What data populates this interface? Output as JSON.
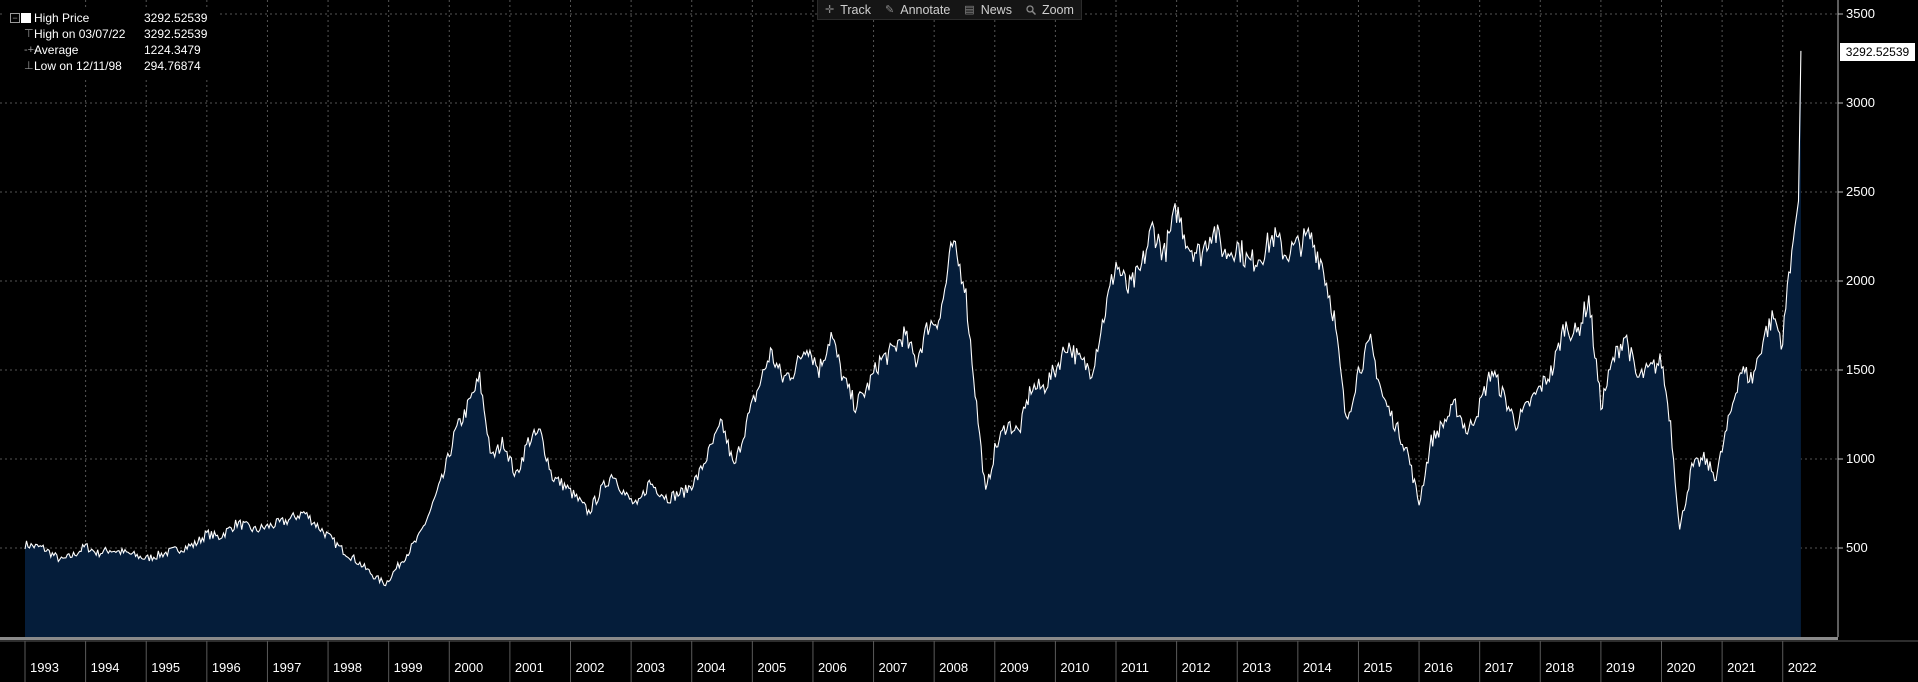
{
  "toolbar": {
    "track": "Track",
    "annotate": "Annotate",
    "news": "News",
    "zoom": "Zoom"
  },
  "legend": {
    "series_label": "High Price",
    "series_value": "3292.52539",
    "high_label": "High on 03/07/22",
    "high_value": "3292.52539",
    "average_label": "Average",
    "average_value": "1224.3479",
    "low_label": "Low on 12/11/98",
    "low_value": "294.76874"
  },
  "last_value_label": "3292.52539",
  "colors": {
    "background": "#000000",
    "line": "#ffffff",
    "fill": "#051d3a",
    "grid": "#555555"
  },
  "chart_data": {
    "type": "area",
    "title": "",
    "xlabel": "",
    "ylabel": "",
    "series_name": "High Price",
    "ylim": [
      0,
      3500
    ],
    "yticks": [
      500,
      1000,
      1500,
      2000,
      2500,
      3000,
      3500
    ],
    "xlim": [
      1993.0,
      2022.45
    ],
    "xticks": [
      "1993",
      "1994",
      "1995",
      "1996",
      "1997",
      "1998",
      "1999",
      "2000",
      "2001",
      "2002",
      "2003",
      "2004",
      "2005",
      "2006",
      "2007",
      "2008",
      "2009",
      "2010",
      "2011",
      "2012",
      "2013",
      "2014",
      "2015",
      "2016",
      "2017",
      "2018",
      "2019",
      "2020",
      "2021",
      "2022"
    ],
    "grid": true,
    "legend_position": "top-left",
    "x": [
      1993.0,
      1993.3,
      1993.6,
      1993.8,
      1994.0,
      1994.2,
      1994.4,
      1994.7,
      1995.0,
      1995.3,
      1995.6,
      1995.8,
      1996.0,
      1996.2,
      1996.5,
      1996.8,
      1997.0,
      1997.3,
      1997.6,
      1997.9,
      1998.2,
      1998.5,
      1998.8,
      1998.95,
      1999.2,
      1999.5,
      1999.7,
      1999.9,
      2000.1,
      2000.25,
      2000.5,
      2000.7,
      2000.9,
      2001.1,
      2001.3,
      2001.5,
      2001.7,
      2001.9,
      2002.1,
      2002.3,
      2002.5,
      2002.7,
      2002.9,
      2003.1,
      2003.3,
      2003.6,
      2003.9,
      2004.1,
      2004.3,
      2004.5,
      2004.7,
      2004.9,
      2005.1,
      2005.3,
      2005.5,
      2005.7,
      2005.9,
      2006.1,
      2006.3,
      2006.5,
      2006.7,
      2006.9,
      2007.1,
      2007.3,
      2007.5,
      2007.7,
      2007.9,
      2008.1,
      2008.3,
      2008.5,
      2008.7,
      2008.85,
      2009.0,
      2009.2,
      2009.4,
      2009.6,
      2009.8,
      2010.0,
      2010.2,
      2010.4,
      2010.6,
      2010.8,
      2011.0,
      2011.2,
      2011.4,
      2011.6,
      2011.8,
      2012.0,
      2012.2,
      2012.4,
      2012.6,
      2012.8,
      2013.0,
      2013.2,
      2013.4,
      2013.6,
      2013.8,
      2014.0,
      2014.2,
      2014.4,
      2014.6,
      2014.8,
      2015.0,
      2015.2,
      2015.4,
      2015.6,
      2015.8,
      2016.0,
      2016.2,
      2016.4,
      2016.6,
      2016.8,
      2017.0,
      2017.2,
      2017.4,
      2017.6,
      2017.8,
      2018.0,
      2018.2,
      2018.4,
      2018.6,
      2018.8,
      2019.0,
      2019.2,
      2019.4,
      2019.6,
      2019.8,
      2020.0,
      2020.15,
      2020.3,
      2020.5,
      2020.7,
      2020.9,
      2021.1,
      2021.3,
      2021.5,
      2021.7,
      2021.85,
      2022.0,
      2022.1,
      2022.2,
      2022.26,
      2022.3
    ],
    "y": [
      520,
      500,
      430,
      460,
      510,
      470,
      490,
      470,
      440,
      470,
      500,
      520,
      580,
      560,
      640,
      600,
      620,
      650,
      700,
      600,
      500,
      420,
      330,
      300,
      420,
      560,
      720,
      900,
      1150,
      1250,
      1450,
      1000,
      1100,
      900,
      1100,
      1150,
      900,
      850,
      780,
      700,
      820,
      920,
      800,
      730,
      870,
      780,
      820,
      900,
      1050,
      1200,
      950,
      1200,
      1400,
      1600,
      1450,
      1500,
      1650,
      1500,
      1700,
      1450,
      1300,
      1400,
      1550,
      1600,
      1700,
      1550,
      1750,
      1800,
      2200,
      2000,
      1300,
      800,
      1050,
      1200,
      1150,
      1400,
      1400,
      1500,
      1650,
      1550,
      1500,
      1800,
      2100,
      1950,
      2050,
      2300,
      2150,
      2400,
      2200,
      2150,
      2300,
      2150,
      2200,
      2100,
      2150,
      2250,
      2150,
      2200,
      2250,
      2100,
      1800,
      1200,
      1500,
      1650,
      1350,
      1200,
      1050,
      750,
      1100,
      1200,
      1300,
      1150,
      1300,
      1500,
      1350,
      1200,
      1300,
      1400,
      1500,
      1750,
      1700,
      1900,
      1300,
      1550,
      1700,
      1450,
      1500,
      1550,
      1200,
      600,
      950,
      1000,
      900,
      1200,
      1500,
      1450,
      1700,
      1800,
      1650,
      2050,
      2300,
      2450,
      3292.52539
    ]
  }
}
